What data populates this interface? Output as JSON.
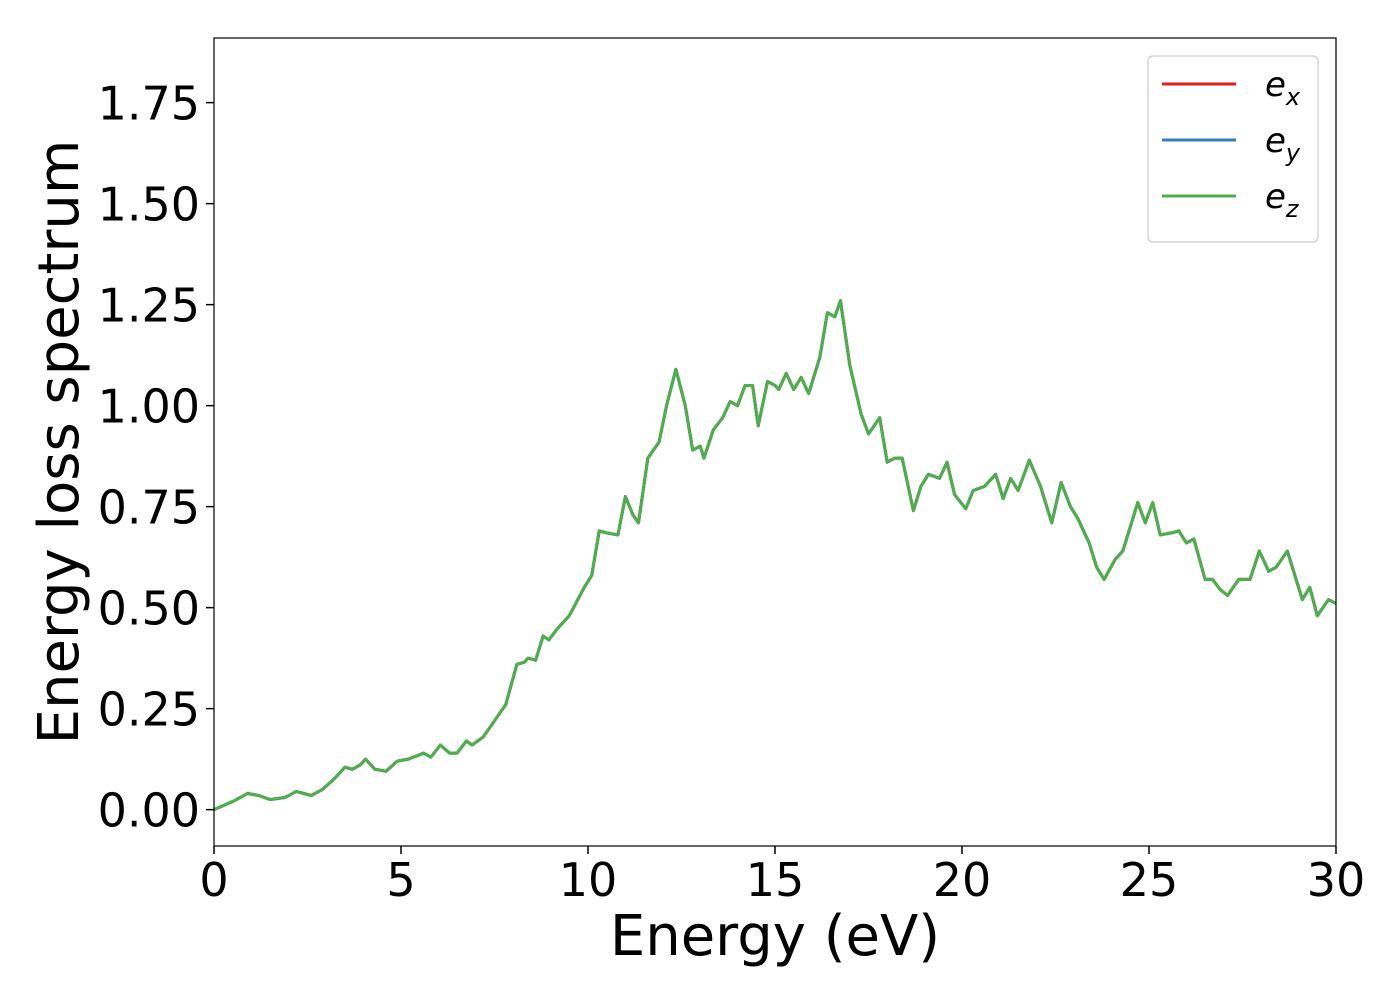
{
  "chart_data": {
    "type": "line",
    "xlabel": "Energy (eV)",
    "ylabel": "Energy loss spectrum",
    "x": [
      0,
      0.5,
      0.9,
      1.2,
      1.5,
      1.9,
      2.2,
      2.6,
      2.9,
      3.2,
      3.5,
      3.7,
      3.9,
      4.05,
      4.3,
      4.6,
      4.9,
      5.2,
      5.6,
      5.8,
      6.05,
      6.3,
      6.5,
      6.75,
      6.9,
      7.2,
      7.5,
      7.8,
      8.1,
      8.3,
      8.4,
      8.6,
      8.8,
      8.95,
      9.2,
      9.5,
      9.9,
      10.1,
      10.3,
      10.5,
      10.8,
      11.0,
      11.2,
      11.35,
      11.6,
      11.9,
      12.1,
      12.35,
      12.6,
      12.8,
      13.0,
      13.1,
      13.35,
      13.6,
      13.8,
      14.0,
      14.2,
      14.4,
      14.55,
      14.8,
      15.0,
      15.1,
      15.3,
      15.5,
      15.7,
      15.9,
      16.2,
      16.4,
      16.6,
      16.75,
      17.0,
      17.3,
      17.5,
      17.8,
      18.0,
      18.2,
      18.4,
      18.7,
      18.9,
      19.1,
      19.4,
      19.6,
      19.8,
      20.1,
      20.3,
      20.6,
      20.9,
      21.1,
      21.3,
      21.5,
      21.8,
      22.1,
      22.4,
      22.65,
      22.9,
      23.1,
      23.4,
      23.6,
      23.8,
      24.1,
      24.3,
      24.6,
      24.7,
      24.9,
      25.1,
      25.3,
      25.6,
      25.8,
      26.0,
      26.2,
      26.5,
      26.7,
      26.9,
      27.1,
      27.4,
      27.7,
      27.95,
      28.2,
      28.4,
      28.7,
      28.9,
      29.1,
      29.3,
      29.5,
      29.8,
      30.0
    ],
    "series": [
      {
        "name": "ex",
        "color": "#e41a1c",
        "values": [
          0,
          0.02,
          0.04,
          0.035,
          0.025,
          0.03,
          0.045,
          0.035,
          0.05,
          0.075,
          0.105,
          0.1,
          0.11,
          0.125,
          0.1,
          0.095,
          0.12,
          0.125,
          0.14,
          0.13,
          0.16,
          0.14,
          0.14,
          0.17,
          0.16,
          0.18,
          0.22,
          0.26,
          0.36,
          0.365,
          0.375,
          0.37,
          0.43,
          0.42,
          0.45,
          0.48,
          0.55,
          0.58,
          0.69,
          0.685,
          0.68,
          0.775,
          0.73,
          0.71,
          0.87,
          0.91,
          1.0,
          1.09,
          1.0,
          0.89,
          0.9,
          0.87,
          0.94,
          0.97,
          1.01,
          1.0,
          1.05,
          1.05,
          0.95,
          1.06,
          1.05,
          1.04,
          1.08,
          1.04,
          1.07,
          1.03,
          1.12,
          1.23,
          1.22,
          1.26,
          1.1,
          0.98,
          0.93,
          0.97,
          0.86,
          0.87,
          0.87,
          0.74,
          0.8,
          0.83,
          0.82,
          0.86,
          0.78,
          0.745,
          0.79,
          0.8,
          0.83,
          0.77,
          0.82,
          0.79,
          0.865,
          0.8,
          0.71,
          0.81,
          0.75,
          0.72,
          0.66,
          0.6,
          0.57,
          0.62,
          0.64,
          0.73,
          0.76,
          0.71,
          0.76,
          0.68,
          0.685,
          0.69,
          0.66,
          0.67,
          0.57,
          0.57,
          0.545,
          0.53,
          0.57,
          0.57,
          0.64,
          0.59,
          0.6,
          0.64,
          0.58,
          0.52,
          0.55,
          0.48,
          0.52,
          0.51
        ]
      },
      {
        "name": "ey",
        "color": "#377eb8",
        "values": [
          0,
          0.02,
          0.04,
          0.035,
          0.025,
          0.03,
          0.045,
          0.035,
          0.05,
          0.075,
          0.105,
          0.1,
          0.11,
          0.125,
          0.1,
          0.095,
          0.12,
          0.125,
          0.14,
          0.13,
          0.16,
          0.14,
          0.14,
          0.17,
          0.16,
          0.18,
          0.22,
          0.26,
          0.36,
          0.365,
          0.375,
          0.37,
          0.43,
          0.42,
          0.45,
          0.48,
          0.55,
          0.58,
          0.69,
          0.685,
          0.68,
          0.775,
          0.73,
          0.71,
          0.87,
          0.91,
          1.0,
          1.09,
          1.0,
          0.89,
          0.9,
          0.87,
          0.94,
          0.97,
          1.01,
          1.0,
          1.05,
          1.05,
          0.95,
          1.06,
          1.05,
          1.04,
          1.08,
          1.04,
          1.07,
          1.03,
          1.12,
          1.23,
          1.22,
          1.26,
          1.1,
          0.98,
          0.93,
          0.97,
          0.86,
          0.87,
          0.87,
          0.74,
          0.8,
          0.83,
          0.82,
          0.86,
          0.78,
          0.745,
          0.79,
          0.8,
          0.83,
          0.77,
          0.82,
          0.79,
          0.865,
          0.8,
          0.71,
          0.81,
          0.75,
          0.72,
          0.66,
          0.6,
          0.57,
          0.62,
          0.64,
          0.73,
          0.76,
          0.71,
          0.76,
          0.68,
          0.685,
          0.69,
          0.66,
          0.67,
          0.57,
          0.57,
          0.545,
          0.53,
          0.57,
          0.57,
          0.64,
          0.59,
          0.6,
          0.64,
          0.58,
          0.52,
          0.55,
          0.48,
          0.52,
          0.51
        ]
      },
      {
        "name": "ez",
        "color": "#4daf4a",
        "values": [
          0,
          0.02,
          0.04,
          0.035,
          0.025,
          0.03,
          0.045,
          0.035,
          0.05,
          0.075,
          0.105,
          0.1,
          0.11,
          0.125,
          0.1,
          0.095,
          0.12,
          0.125,
          0.14,
          0.13,
          0.16,
          0.14,
          0.14,
          0.17,
          0.16,
          0.18,
          0.22,
          0.26,
          0.36,
          0.365,
          0.375,
          0.37,
          0.43,
          0.42,
          0.45,
          0.48,
          0.55,
          0.58,
          0.69,
          0.685,
          0.68,
          0.775,
          0.73,
          0.71,
          0.87,
          0.91,
          1.0,
          1.09,
          1.0,
          0.89,
          0.9,
          0.87,
          0.94,
          0.97,
          1.01,
          1.0,
          1.05,
          1.05,
          0.95,
          1.06,
          1.05,
          1.04,
          1.08,
          1.04,
          1.07,
          1.03,
          1.12,
          1.23,
          1.22,
          1.26,
          1.1,
          0.98,
          0.93,
          0.97,
          0.86,
          0.87,
          0.87,
          0.74,
          0.8,
          0.83,
          0.82,
          0.86,
          0.78,
          0.745,
          0.79,
          0.8,
          0.83,
          0.77,
          0.82,
          0.79,
          0.865,
          0.8,
          0.71,
          0.81,
          0.75,
          0.72,
          0.66,
          0.6,
          0.57,
          0.62,
          0.64,
          0.73,
          0.76,
          0.71,
          0.76,
          0.68,
          0.685,
          0.69,
          0.66,
          0.67,
          0.57,
          0.57,
          0.545,
          0.53,
          0.57,
          0.57,
          0.64,
          0.59,
          0.6,
          0.64,
          0.58,
          0.52,
          0.55,
          0.48,
          0.52,
          0.51
        ]
      }
    ],
    "xlim": [
      0,
      30
    ],
    "xticks": [
      0,
      5,
      10,
      15,
      20,
      25,
      30
    ],
    "ylim": [
      -0.09,
      1.91
    ],
    "yticks": [
      {
        "value": 0,
        "label": "0.00"
      },
      {
        "value": 0.25,
        "label": "0.25"
      },
      {
        "value": 0.5,
        "label": "0.50"
      },
      {
        "value": 0.75,
        "label": "0.75"
      },
      {
        "value": 1,
        "label": "1.00"
      },
      {
        "value": 1.25,
        "label": "1.25"
      },
      {
        "value": 1.5,
        "label": "1.50"
      },
      {
        "value": 1.75,
        "label": "1.75"
      }
    ],
    "grid": false,
    "legend": "upper right"
  }
}
